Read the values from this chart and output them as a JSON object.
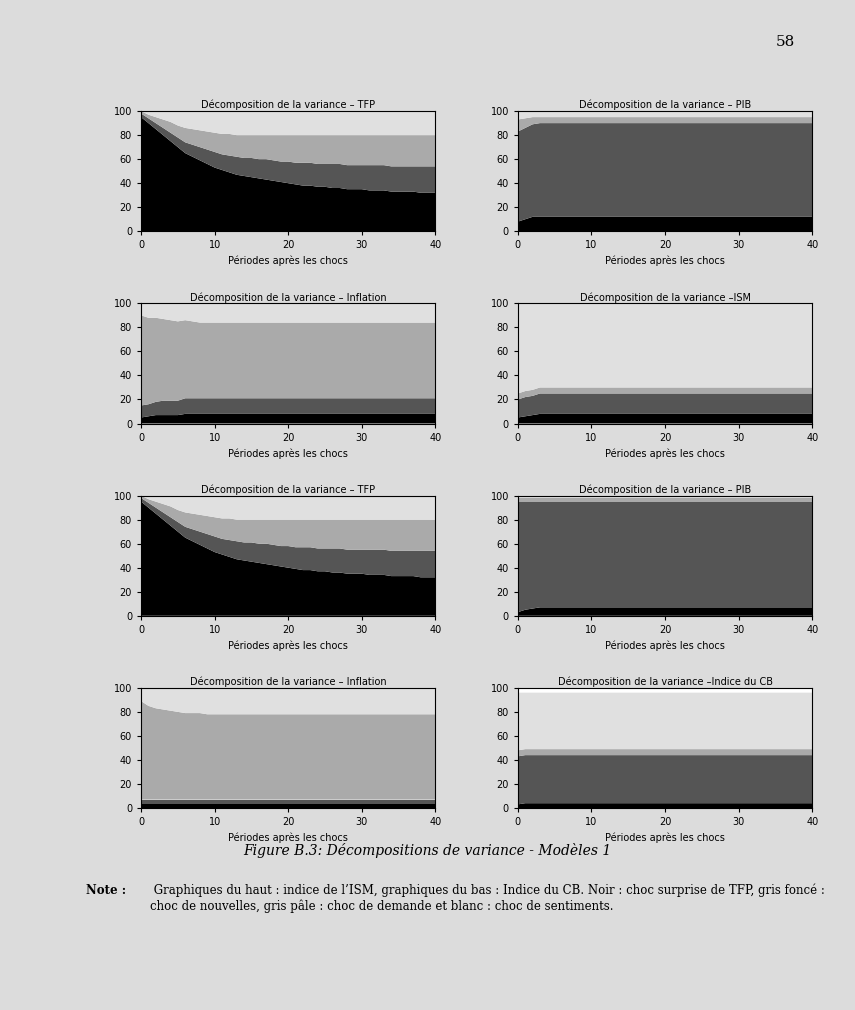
{
  "figure_caption": "Figure B.3: Décompositions de variance - Modèles 1",
  "note_bold": "Note :",
  "note_text": " Graphiques du haut : indice de l’ISM, graphiques du bas : Indice du CB. Noir : choc surprise de TFP, gris foncé : choc de nouvelles, gris pâle : choc de demande et blanc : choc de sentiments.",
  "page_number": "58",
  "xlabel": "Périodes après les chocs",
  "bg_color": "#e8e8e8",
  "plot_bg": "#ffffff",
  "colors": {
    "black": "#000000",
    "dark_gray": "#555555",
    "light_gray": "#aaaaaa",
    "white": "#e0e0e0"
  },
  "row1": {
    "titles": [
      "Décomposition de la variance – TFP",
      "Décomposition de la variance – PIB"
    ],
    "tfp": {
      "black": [
        95,
        90,
        85,
        80,
        75,
        70,
        65,
        62,
        59,
        56,
        53,
        51,
        49,
        47,
        46,
        45,
        44,
        43,
        42,
        41,
        40,
        39,
        38,
        38,
        37,
        37,
        36,
        36,
        35,
        35,
        35,
        34,
        34,
        34,
        33,
        33,
        33,
        33,
        32,
        32,
        32
      ],
      "dark_gray": [
        3,
        4,
        5,
        6,
        7,
        8,
        9,
        10,
        11,
        12,
        13,
        13,
        14,
        15,
        15,
        16,
        16,
        17,
        17,
        17,
        18,
        18,
        19,
        19,
        19,
        19,
        20,
        20,
        20,
        20,
        20,
        21,
        21,
        21,
        21,
        21,
        21,
        21,
        22,
        22,
        22
      ],
      "light_gray": [
        2,
        3,
        5,
        7,
        9,
        10,
        12,
        13,
        14,
        15,
        16,
        17,
        18,
        18,
        19,
        19,
        20,
        20,
        21,
        22,
        22,
        23,
        23,
        23,
        24,
        24,
        24,
        24,
        25,
        25,
        25,
        25,
        25,
        25,
        26,
        26,
        26,
        26,
        26,
        26,
        26
      ],
      "white": [
        0,
        3,
        5,
        7,
        9,
        12,
        14,
        15,
        16,
        17,
        18,
        19,
        19,
        20,
        20,
        20,
        20,
        20,
        20,
        20,
        20,
        20,
        20,
        20,
        20,
        20,
        20,
        20,
        20,
        20,
        20,
        20,
        20,
        20,
        20,
        20,
        20,
        20,
        20,
        20,
        20
      ]
    },
    "pib": {
      "black": [
        8,
        10,
        12,
        12,
        12,
        12,
        12,
        12,
        12,
        12,
        12,
        12,
        12,
        12,
        12,
        12,
        12,
        12,
        12,
        12,
        12,
        12,
        12,
        12,
        12,
        12,
        12,
        12,
        12,
        12,
        12,
        12,
        12,
        12,
        12,
        12,
        12,
        12,
        12,
        12,
        12
      ],
      "dark_gray": [
        75,
        76,
        77,
        78,
        78,
        78,
        78,
        78,
        78,
        78,
        78,
        78,
        78,
        78,
        78,
        78,
        78,
        78,
        78,
        78,
        78,
        78,
        78,
        78,
        78,
        78,
        78,
        78,
        78,
        78,
        78,
        78,
        78,
        78,
        78,
        78,
        78,
        78,
        78,
        78,
        78
      ],
      "light_gray": [
        10,
        8,
        6,
        5,
        5,
        5,
        5,
        5,
        5,
        5,
        5,
        5,
        5,
        5,
        5,
        5,
        5,
        5,
        5,
        5,
        5,
        5,
        5,
        5,
        5,
        5,
        5,
        5,
        5,
        5,
        5,
        5,
        5,
        5,
        5,
        5,
        5,
        5,
        5,
        5,
        5
      ],
      "white": [
        7,
        6,
        5,
        5,
        5,
        5,
        5,
        5,
        5,
        5,
        5,
        5,
        5,
        5,
        5,
        5,
        5,
        5,
        5,
        5,
        5,
        5,
        5,
        5,
        5,
        5,
        5,
        5,
        5,
        5,
        5,
        5,
        5,
        5,
        5,
        5,
        5,
        5,
        5,
        5,
        5
      ]
    }
  },
  "row2": {
    "titles": [
      "Décomposition de la variance – Inflation",
      "Décomposition de la variance –ISM"
    ],
    "inflation": {
      "black": [
        5,
        6,
        7,
        7,
        7,
        7,
        8,
        8,
        8,
        8,
        8,
        8,
        8,
        8,
        8,
        8,
        8,
        8,
        8,
        8,
        8,
        8,
        8,
        8,
        8,
        8,
        8,
        8,
        8,
        8,
        8,
        8,
        8,
        8,
        8,
        8,
        8,
        8,
        8,
        8,
        8
      ],
      "dark_gray": [
        10,
        10,
        11,
        12,
        12,
        12,
        13,
        13,
        13,
        13,
        13,
        13,
        13,
        13,
        13,
        13,
        13,
        13,
        13,
        13,
        13,
        13,
        13,
        13,
        13,
        13,
        13,
        13,
        13,
        13,
        13,
        13,
        13,
        13,
        13,
        13,
        13,
        13,
        13,
        13,
        13
      ],
      "light_gray": [
        75,
        72,
        70,
        68,
        67,
        66,
        65,
        64,
        63,
        63,
        63,
        63,
        63,
        63,
        63,
        63,
        63,
        63,
        63,
        63,
        63,
        63,
        63,
        63,
        63,
        63,
        63,
        63,
        63,
        63,
        63,
        63,
        63,
        63,
        63,
        63,
        63,
        63,
        63,
        63,
        63
      ],
      "white": [
        10,
        12,
        12,
        13,
        14,
        15,
        14,
        15,
        16,
        16,
        16,
        16,
        16,
        16,
        16,
        16,
        16,
        16,
        16,
        16,
        16,
        16,
        16,
        16,
        16,
        16,
        16,
        16,
        16,
        16,
        16,
        16,
        16,
        16,
        16,
        16,
        16,
        16,
        16,
        16,
        16
      ]
    },
    "ism": {
      "black": [
        5,
        6,
        7,
        8,
        8,
        8,
        8,
        8,
        8,
        8,
        8,
        8,
        8,
        8,
        8,
        8,
        8,
        8,
        8,
        8,
        8,
        8,
        8,
        8,
        8,
        8,
        8,
        8,
        8,
        8,
        8,
        8,
        8,
        8,
        8,
        8,
        8,
        8,
        8,
        8,
        8
      ],
      "dark_gray": [
        15,
        16,
        16,
        17,
        17,
        17,
        17,
        17,
        17,
        17,
        17,
        17,
        17,
        17,
        17,
        17,
        17,
        17,
        17,
        17,
        17,
        17,
        17,
        17,
        17,
        17,
        17,
        17,
        17,
        17,
        17,
        17,
        17,
        17,
        17,
        17,
        17,
        17,
        17,
        17,
        17
      ],
      "light_gray": [
        5,
        5,
        5,
        5,
        5,
        5,
        5,
        5,
        5,
        5,
        5,
        5,
        5,
        5,
        5,
        5,
        5,
        5,
        5,
        5,
        5,
        5,
        5,
        5,
        5,
        5,
        5,
        5,
        5,
        5,
        5,
        5,
        5,
        5,
        5,
        5,
        5,
        5,
        5,
        5,
        5
      ],
      "white": [
        75,
        73,
        72,
        70,
        70,
        70,
        70,
        70,
        70,
        70,
        70,
        70,
        70,
        70,
        70,
        70,
        70,
        70,
        70,
        70,
        70,
        70,
        70,
        70,
        70,
        70,
        70,
        70,
        70,
        70,
        70,
        70,
        70,
        70,
        70,
        70,
        70,
        70,
        70,
        70,
        70
      ]
    }
  },
  "row3": {
    "titles": [
      "Décomposition de la variance – TFP",
      "Décomposition de la variance – PIB"
    ],
    "tfp": {
      "black": [
        95,
        90,
        85,
        80,
        75,
        70,
        65,
        62,
        59,
        56,
        53,
        51,
        49,
        47,
        46,
        45,
        44,
        43,
        42,
        41,
        40,
        39,
        38,
        38,
        37,
        37,
        36,
        36,
        35,
        35,
        35,
        34,
        34,
        34,
        33,
        33,
        33,
        33,
        32,
        32,
        32
      ],
      "dark_gray": [
        3,
        4,
        5,
        6,
        7,
        8,
        9,
        10,
        11,
        12,
        13,
        13,
        14,
        15,
        15,
        16,
        16,
        17,
        17,
        17,
        18,
        18,
        19,
        19,
        19,
        19,
        20,
        20,
        20,
        20,
        20,
        21,
        21,
        21,
        21,
        21,
        21,
        21,
        22,
        22,
        22
      ],
      "light_gray": [
        2,
        3,
        5,
        7,
        9,
        10,
        12,
        13,
        14,
        15,
        16,
        17,
        18,
        18,
        19,
        19,
        20,
        20,
        21,
        22,
        22,
        23,
        23,
        23,
        24,
        24,
        24,
        24,
        25,
        25,
        25,
        25,
        25,
        25,
        26,
        26,
        26,
        26,
        26,
        26,
        26
      ],
      "white": [
        0,
        3,
        5,
        7,
        9,
        12,
        14,
        15,
        16,
        17,
        18,
        19,
        19,
        20,
        20,
        20,
        20,
        20,
        20,
        20,
        20,
        20,
        20,
        20,
        20,
        20,
        20,
        20,
        20,
        20,
        20,
        20,
        20,
        20,
        20,
        20,
        20,
        20,
        20,
        20,
        20
      ]
    },
    "pib": {
      "black": [
        3,
        5,
        6,
        7,
        7,
        7,
        7,
        7,
        7,
        7,
        7,
        7,
        7,
        7,
        7,
        7,
        7,
        7,
        7,
        7,
        7,
        7,
        7,
        7,
        7,
        7,
        7,
        7,
        7,
        7,
        7,
        7,
        7,
        7,
        7,
        7,
        7,
        7,
        7,
        7,
        7
      ],
      "dark_gray": [
        92,
        90,
        89,
        88,
        88,
        88,
        88,
        88,
        88,
        88,
        88,
        88,
        88,
        88,
        88,
        88,
        88,
        88,
        88,
        88,
        88,
        88,
        88,
        88,
        88,
        88,
        88,
        88,
        88,
        88,
        88,
        88,
        88,
        88,
        88,
        88,
        88,
        88,
        88,
        88,
        88
      ],
      "light_gray": [
        3,
        3,
        3,
        3,
        3,
        3,
        3,
        3,
        3,
        3,
        3,
        3,
        3,
        3,
        3,
        3,
        3,
        3,
        3,
        3,
        3,
        3,
        3,
        3,
        3,
        3,
        3,
        3,
        3,
        3,
        3,
        3,
        3,
        3,
        3,
        3,
        3,
        3,
        3,
        3,
        3
      ],
      "white": [
        2,
        2,
        2,
        2,
        2,
        2,
        2,
        2,
        2,
        2,
        2,
        2,
        2,
        2,
        2,
        2,
        2,
        2,
        2,
        2,
        2,
        2,
        2,
        2,
        2,
        2,
        2,
        2,
        2,
        2,
        2,
        2,
        2,
        2,
        2,
        2,
        2,
        2,
        2,
        2,
        2
      ]
    }
  },
  "row4": {
    "titles": [
      "Décomposition de la variance – Inflation",
      "Décomposition de la variance –Indice du CB"
    ],
    "inflation": {
      "black": [
        3,
        3,
        3,
        3,
        3,
        3,
        3,
        3,
        3,
        3,
        3,
        3,
        3,
        3,
        3,
        3,
        3,
        3,
        3,
        3,
        3,
        3,
        3,
        3,
        3,
        3,
        3,
        3,
        3,
        3,
        3,
        3,
        3,
        3,
        3,
        3,
        3,
        3,
        3,
        3,
        3
      ],
      "dark_gray": [
        4,
        4,
        4,
        4,
        4,
        4,
        4,
        4,
        4,
        4,
        4,
        4,
        4,
        4,
        4,
        4,
        4,
        4,
        4,
        4,
        4,
        4,
        4,
        4,
        4,
        4,
        4,
        4,
        4,
        4,
        4,
        4,
        4,
        4,
        4,
        4,
        4,
        4,
        4,
        4,
        4
      ],
      "light_gray": [
        82,
        78,
        76,
        75,
        74,
        73,
        72,
        72,
        72,
        71,
        71,
        71,
        71,
        71,
        71,
        71,
        71,
        71,
        71,
        71,
        71,
        71,
        71,
        71,
        71,
        71,
        71,
        71,
        71,
        71,
        71,
        71,
        71,
        71,
        71,
        71,
        71,
        71,
        71,
        71,
        71
      ],
      "white": [
        11,
        15,
        17,
        18,
        19,
        20,
        21,
        21,
        21,
        22,
        22,
        22,
        22,
        22,
        22,
        22,
        22,
        22,
        22,
        22,
        22,
        22,
        22,
        22,
        22,
        22,
        22,
        22,
        22,
        22,
        22,
        22,
        22,
        22,
        22,
        22,
        22,
        22,
        22,
        22,
        22
      ]
    },
    "cb": {
      "black": [
        3,
        4,
        4,
        4,
        4,
        4,
        4,
        4,
        4,
        4,
        4,
        4,
        4,
        4,
        4,
        4,
        4,
        4,
        4,
        4,
        4,
        4,
        4,
        4,
        4,
        4,
        4,
        4,
        4,
        4,
        4,
        4,
        4,
        4,
        4,
        4,
        4,
        4,
        4,
        4,
        4
      ],
      "dark_gray": [
        40,
        40,
        40,
        40,
        40,
        40,
        40,
        40,
        40,
        40,
        40,
        40,
        40,
        40,
        40,
        40,
        40,
        40,
        40,
        40,
        40,
        40,
        40,
        40,
        40,
        40,
        40,
        40,
        40,
        40,
        40,
        40,
        40,
        40,
        40,
        40,
        40,
        40,
        40,
        40,
        40
      ],
      "light_gray": [
        5,
        5,
        5,
        5,
        5,
        5,
        5,
        5,
        5,
        5,
        5,
        5,
        5,
        5,
        5,
        5,
        5,
        5,
        5,
        5,
        5,
        5,
        5,
        5,
        5,
        5,
        5,
        5,
        5,
        5,
        5,
        5,
        5,
        5,
        5,
        5,
        5,
        5,
        5,
        5,
        5
      ],
      "white": [
        48,
        47,
        47,
        47,
        47,
        47,
        47,
        47,
        47,
        47,
        47,
        47,
        47,
        47,
        47,
        47,
        47,
        47,
        47,
        47,
        47,
        47,
        47,
        47,
        47,
        47,
        47,
        47,
        47,
        47,
        47,
        47,
        47,
        47,
        47,
        47,
        47,
        47,
        47,
        47,
        47
      ]
    }
  }
}
